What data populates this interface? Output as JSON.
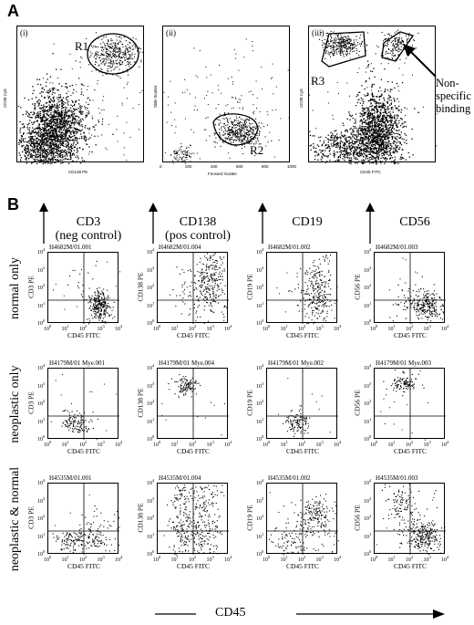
{
  "panel_a": {
    "letter": "A",
    "plots": [
      {
        "roman": "(i)",
        "xlabel": "CD138 PE",
        "ylabel": "CD38 Cy5",
        "region": "R1"
      },
      {
        "roman": "(ii)",
        "xlabel": "Forward Scatter",
        "ylabel": "Side Scatter",
        "region": "R2",
        "xticks": [
          "0",
          "200",
          "400",
          "600",
          "800",
          "1000"
        ]
      },
      {
        "roman": "(iii)",
        "xlabel": "CD45 FITC",
        "ylabel": "CD38 Cy5",
        "region": "R3"
      }
    ],
    "annotation": [
      "Non-",
      "specific",
      "binding"
    ]
  },
  "panel_b": {
    "letter": "B",
    "columns": [
      {
        "lines": [
          "CD3",
          "(neg control)"
        ]
      },
      {
        "lines": [
          "CD138",
          "(pos control)"
        ]
      },
      {
        "lines": [
          "CD19"
        ]
      },
      {
        "lines": [
          "CD56"
        ]
      }
    ],
    "rows": [
      {
        "label": "normal only",
        "titles": [
          "H4682M/01.001",
          "H4682M/01.004",
          "H4682M/01.002",
          "H4682M/01.003"
        ]
      },
      {
        "label": "neoplastic only",
        "titles": [
          "H4179M/01 Mye.001",
          "H4179M/01 Mye.004",
          "H4179M/01 Mye.002",
          "H4179M/01 Mye.003"
        ]
      },
      {
        "label": "neoplastic & normal",
        "titles": [
          "H4535M/01.001",
          "H4535M/01.004",
          "H4535M/01.002",
          "H4535M/01.003"
        ]
      }
    ],
    "ylabels": [
      "CD3 PE",
      "CD138 PE",
      "CD19 PE",
      "CD56 PE"
    ],
    "xlabel": "CD45 FITC",
    "decade_ticks": [
      "0",
      "1",
      "2",
      "3",
      "4"
    ],
    "tick_base": "10",
    "bottom_axis_label": "CD45"
  }
}
